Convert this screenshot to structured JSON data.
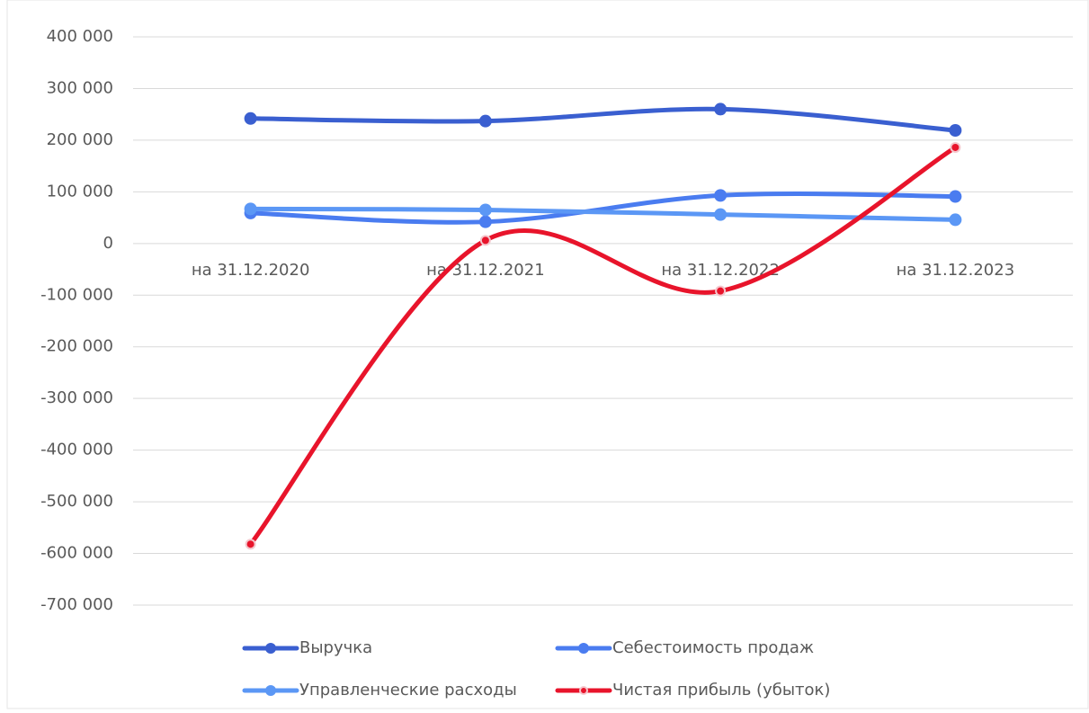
{
  "chart_data": {
    "type": "line",
    "smooth": true,
    "grid": true,
    "legend": "bottom",
    "categories": [
      "на 31.12.2020",
      "на 31.12.2021",
      "на 31.12.2022",
      "на 31.12.2023"
    ],
    "ylim": [
      -700000,
      400000
    ],
    "yticks": [
      {
        "value": 400000,
        "label": "400 000"
      },
      {
        "value": 300000,
        "label": "300 000"
      },
      {
        "value": 200000,
        "label": "200 000"
      },
      {
        "value": 100000,
        "label": "100 000"
      },
      0,
      {
        "value": -100000,
        "label": "-100 000"
      },
      {
        "value": -200000,
        "label": "-200 000"
      },
      {
        "value": -300000,
        "label": "-300 000"
      },
      {
        "value": -400000,
        "label": "-400 000"
      },
      {
        "value": -500000,
        "label": "-500 000"
      },
      {
        "value": -600000,
        "label": "-600 000"
      },
      {
        "value": -700000,
        "label": "-700 000"
      }
    ],
    "series": [
      {
        "name": "Выручка",
        "color": "#3a5fd0",
        "values": [
          242000,
          237000,
          260000,
          219000
        ]
      },
      {
        "name": "Себестоимость продаж",
        "color": "#4a7cf0",
        "values": [
          59000,
          42000,
          93000,
          91000
        ]
      },
      {
        "name": "Управленческие расходы",
        "color": "#5b97f5",
        "values": [
          67000,
          65000,
          56000,
          46000
        ]
      },
      {
        "name": "Чистая прибыль (убыток)",
        "color": "#e8142b",
        "values": [
          -582000,
          6000,
          -92000,
          186000
        ]
      }
    ]
  }
}
